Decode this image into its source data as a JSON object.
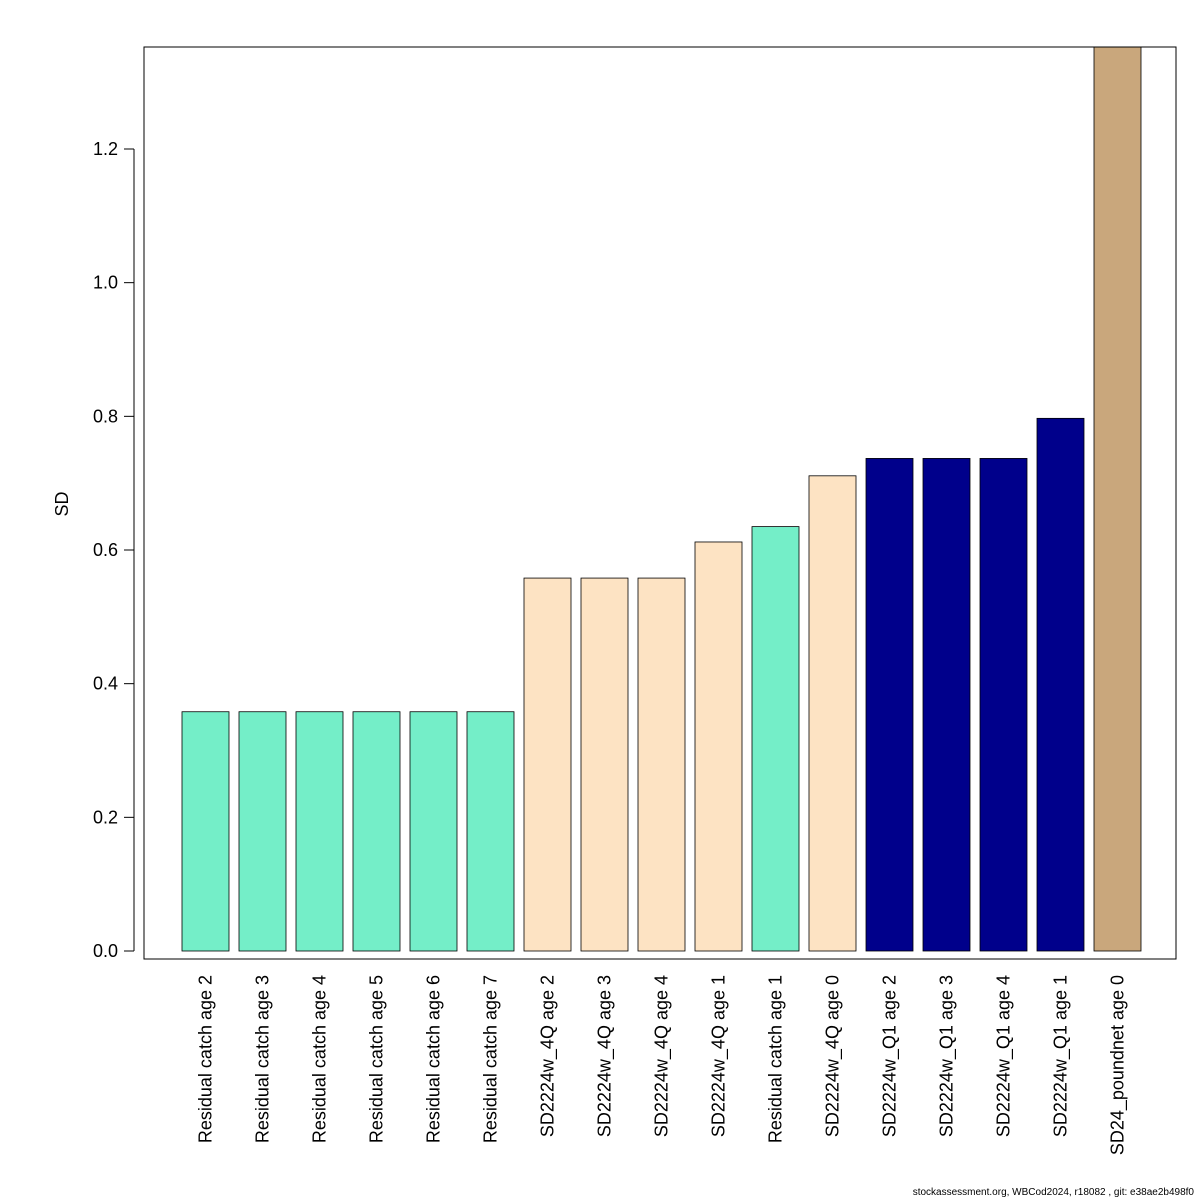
{
  "chart_data": {
    "type": "bar",
    "ylabel": "SD",
    "ylim": [
      0,
      1.35
    ],
    "yticks": [
      0.0,
      0.2,
      0.4,
      0.6,
      0.8,
      1.0,
      1.2
    ],
    "ytick_labels": [
      "0.0",
      "0.2",
      "0.4",
      "0.6",
      "0.8",
      "1.0",
      "1.2"
    ],
    "grid": false,
    "categories": [
      "Residual catch age 2",
      "Residual catch age 3",
      "Residual catch age 4",
      "Residual catch age 5",
      "Residual catch age 6",
      "Residual catch age 7",
      "SD2224w_4Q age 2",
      "SD2224w_4Q age 3",
      "SD2224w_4Q age 4",
      "SD2224w_4Q age 1",
      "Residual catch age 1",
      "SD2224w_4Q age 0",
      "SD2224w_Q1 age 2",
      "SD2224w_Q1 age 3",
      "SD2224w_Q1 age 4",
      "SD2224w_Q1 age 1",
      "SD24_poundnet age 0"
    ],
    "values": [
      0.358,
      0.358,
      0.358,
      0.358,
      0.358,
      0.358,
      0.558,
      0.558,
      0.558,
      0.612,
      0.635,
      0.711,
      0.737,
      0.737,
      0.737,
      0.797,
      1.4
    ],
    "bar_colors": [
      "#74eec8",
      "#74eec8",
      "#74eec8",
      "#74eec8",
      "#74eec8",
      "#74eec8",
      "#fde3c3",
      "#fde3c3",
      "#fde3c3",
      "#fde3c3",
      "#74eec8",
      "#fde3c3",
      "#00008b",
      "#00008b",
      "#00008b",
      "#00008b",
      "#c9a77c"
    ]
  },
  "footer": "stockassessment.org, WBCod2024, r18082 , git: e38ae2b498f0"
}
